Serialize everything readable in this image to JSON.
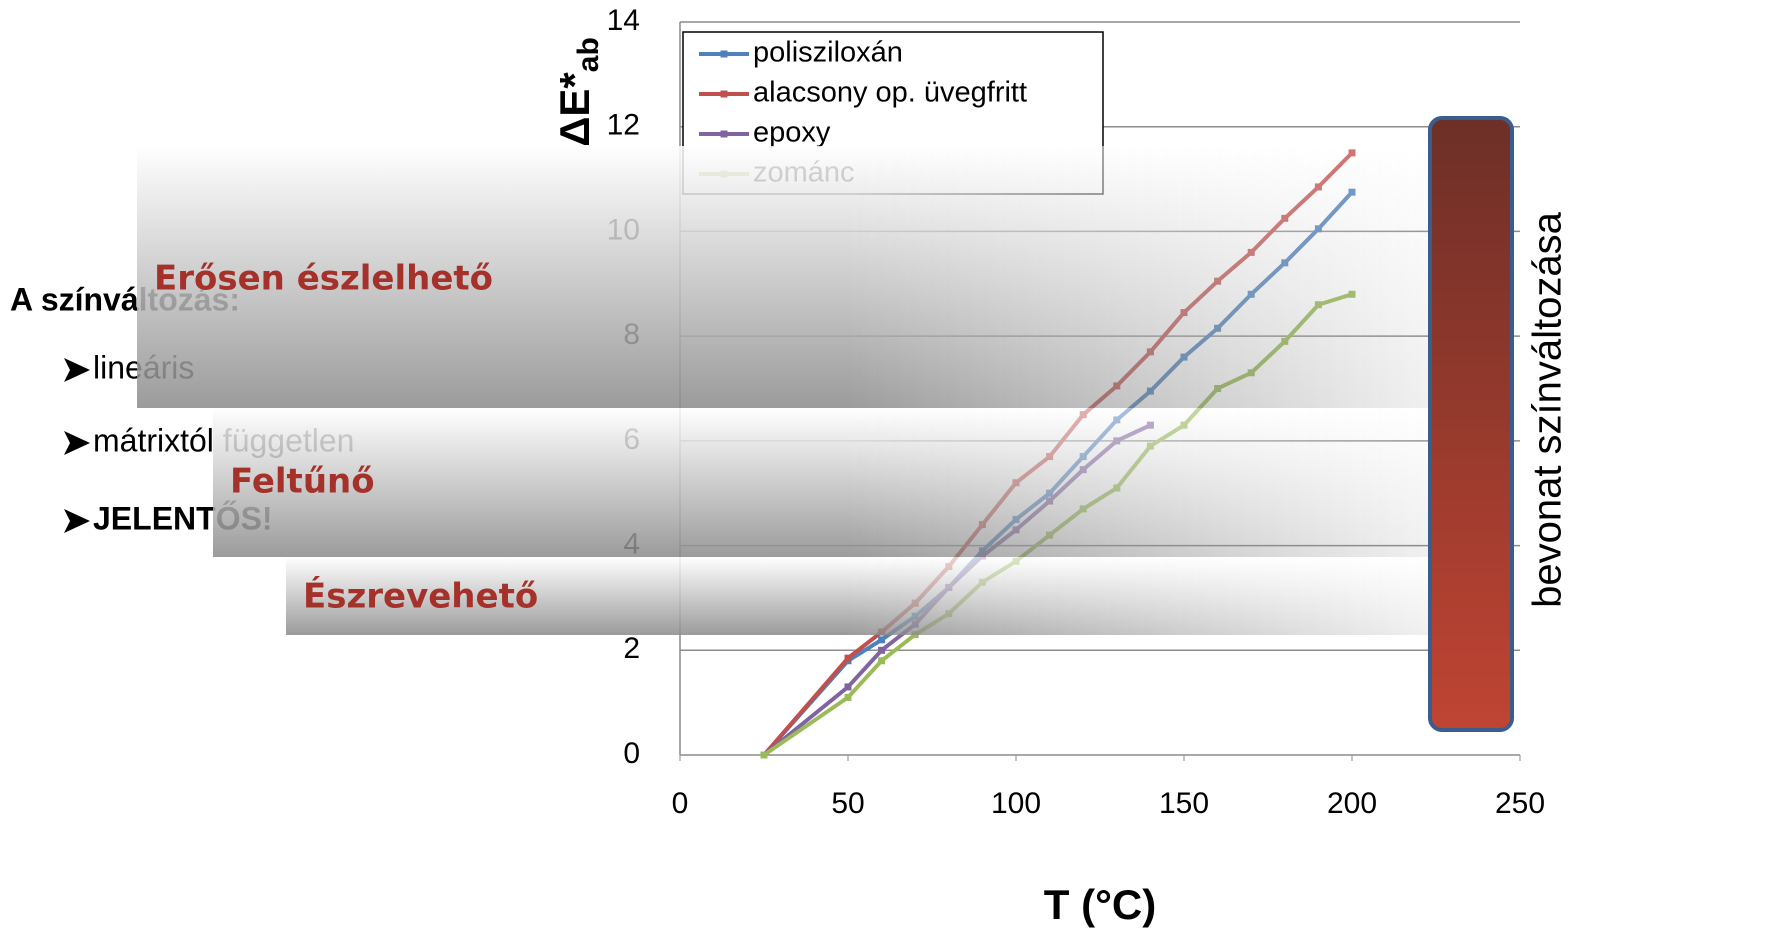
{
  "chart_data": {
    "type": "line",
    "x_label": "T (°C)",
    "y_label": "ΔE*",
    "y_label_subscript": "ab",
    "x": [
      25,
      50,
      60,
      70,
      80,
      90,
      100,
      110,
      120,
      130,
      140,
      150,
      160,
      170,
      180,
      190,
      200
    ],
    "series": [
      {
        "name": "polisziloxán",
        "color": "#4f81bd",
        "values": [
          0,
          1.8,
          2.2,
          2.65,
          3.2,
          3.9,
          4.5,
          5.0,
          5.7,
          6.4,
          6.95,
          7.6,
          8.15,
          8.8,
          9.4,
          10.05,
          10.75
        ]
      },
      {
        "name": "alacsony op. üvegfritt",
        "color": "#c0504d",
        "values": [
          0,
          1.85,
          2.35,
          2.9,
          3.6,
          4.4,
          5.2,
          5.7,
          6.5,
          7.05,
          7.7,
          8.45,
          9.05,
          9.6,
          10.25,
          10.85,
          11.5
        ]
      },
      {
        "name": "epoxy",
        "color": "#8064a2",
        "values": [
          0,
          1.3,
          2.0,
          2.5,
          3.2,
          3.8,
          4.3,
          4.85,
          5.45,
          6.0,
          6.3,
          null,
          null,
          null,
          null,
          null,
          null
        ]
      },
      {
        "name": "zománc",
        "color": "#9bbb59",
        "values": [
          0,
          1.1,
          1.8,
          2.3,
          2.7,
          3.3,
          3.7,
          4.2,
          4.7,
          5.1,
          5.9,
          6.3,
          7.0,
          7.3,
          7.9,
          8.6,
          8.8
        ]
      }
    ],
    "xlim": [
      0,
      250
    ],
    "xticks": [
      0,
      50,
      100,
      150,
      200,
      250
    ],
    "ylim": [
      0,
      14
    ],
    "yticks": [
      0,
      2,
      4,
      6,
      8,
      10,
      12,
      14
    ],
    "grid": true,
    "legend": "upper left"
  },
  "side_text": {
    "heading": "A színváltozás:",
    "bullets": [
      "lineáris",
      "mátrixtól független",
      "JELENTŐS!"
    ]
  },
  "bands": [
    "Erősen észlelhető",
    "Feltűnő",
    "Észrevehető"
  ],
  "side_bar_label": "bevonat színváltozása"
}
